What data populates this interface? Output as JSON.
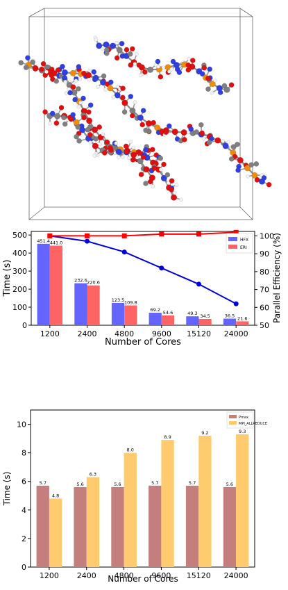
{
  "molecule": {
    "colors": {
      "carbon": "#7f7f7f",
      "nitrogen": "#2f3fe0",
      "oxygen": "#e01010",
      "phosphorus": "#ee8c10",
      "hydrogen": "#f2f2f2"
    }
  },
  "chart_data": [
    {
      "type": "bar",
      "categories": [
        "1200",
        "2400",
        "4800",
        "9600",
        "15120",
        "24000"
      ],
      "series": [
        {
          "name": "HFX",
          "values": [
            451.4,
            232.6,
            123.5,
            69.2,
            49.3,
            36.5
          ],
          "color": "#6464ff"
        },
        {
          "name": "ERI",
          "values": [
            441.0,
            220.6,
            109.8,
            54.6,
            34.5,
            21.6
          ],
          "color": "#ff6464"
        }
      ],
      "data_labels": {
        "HFX": [
          "451.4",
          "232.6",
          "123.5",
          "69.2",
          "49.3",
          "36.5"
        ],
        "ERI": [
          "441.0",
          "220.6",
          "109.8",
          "54.6",
          "34.5",
          "21.6"
        ]
      },
      "xlabel": "Number of Cores",
      "ylabel": "Time (s)",
      "ylim": [
        0,
        520
      ],
      "yticks": [
        0,
        100,
        200,
        300,
        400,
        500
      ],
      "y2label": "Parallel Efficiency (%)",
      "y2lim": [
        50,
        102.5
      ],
      "y2ticks": [
        50,
        60,
        70,
        80,
        90,
        100
      ],
      "lines": [
        {
          "values": [
            100,
            97,
            91,
            82,
            73,
            62
          ],
          "color": "#0000dd",
          "marker": "circle"
        },
        {
          "values": [
            100,
            100,
            100,
            101,
            101,
            102
          ],
          "color": "#ff0000",
          "marker": "square"
        }
      ],
      "legend": "top-right",
      "grid": false
    },
    {
      "type": "bar",
      "categories": [
        "1200",
        "2400",
        "4800",
        "9600",
        "15120",
        "24000"
      ],
      "series": [
        {
          "name": "Pmax",
          "values": [
            5.7,
            5.6,
            5.6,
            5.7,
            5.7,
            5.6
          ],
          "color": "#c47e7e"
        },
        {
          "name": "MPI_ALLREDUCE",
          "values": [
            4.8,
            6.3,
            8.0,
            8.9,
            9.2,
            9.3
          ],
          "color": "#ffcb6e"
        }
      ],
      "data_labels": {
        "Pmax": [
          "5.7",
          "5.6",
          "5.6",
          "5.7",
          "5.7",
          "5.6"
        ],
        "MPI_ALLREDUCE": [
          "4.8",
          "6.3",
          "8.0",
          "8.9",
          "9.2",
          "9.3"
        ]
      },
      "xlabel": "Number of Cores",
      "ylabel": "Time (s)",
      "ylim": [
        0,
        11
      ],
      "yticks": [
        0,
        2,
        4,
        6,
        8,
        10
      ],
      "legend": "top-right",
      "grid": false
    }
  ]
}
